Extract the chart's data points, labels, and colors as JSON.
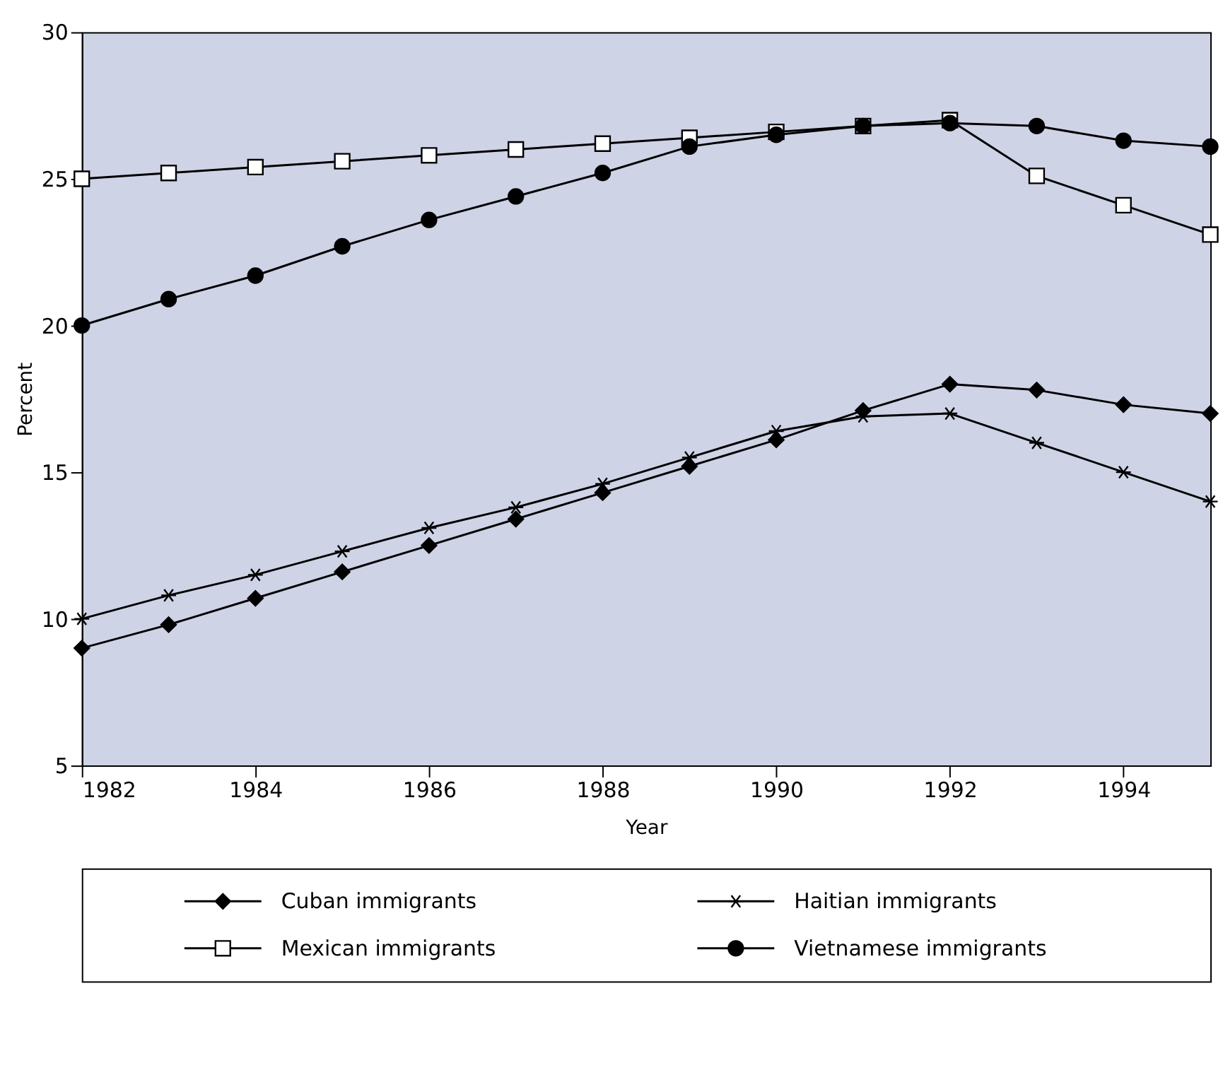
{
  "chart_data": {
    "type": "line",
    "xlabel": "Year",
    "ylabel": "Percent",
    "x": [
      1982,
      1983,
      1984,
      1985,
      1986,
      1987,
      1988,
      1989,
      1990,
      1991,
      1992,
      1993,
      1994,
      1995
    ],
    "xlim": [
      1982,
      1995
    ],
    "xticks": [
      1982,
      1984,
      1986,
      1988,
      1990,
      1992,
      1994
    ],
    "ylim": [
      5,
      30
    ],
    "yticks": [
      5,
      10,
      15,
      20,
      25,
      30
    ],
    "grid": false,
    "legend": "bottom",
    "series": [
      {
        "name": "Cuban immigrants",
        "color": "#000000",
        "marker": "diamond",
        "values": [
          9.0,
          9.8,
          10.7,
          11.6,
          12.5,
          13.4,
          14.3,
          15.2,
          16.1,
          17.1,
          18.0,
          17.8,
          17.3,
          17.0
        ]
      },
      {
        "name": "Haitian immigrants",
        "color": "#000000",
        "marker": "cross",
        "values": [
          10.0,
          10.8,
          11.5,
          12.3,
          13.1,
          13.8,
          14.6,
          15.5,
          16.4,
          16.9,
          17.0,
          16.0,
          15.0,
          14.0
        ]
      },
      {
        "name": "Mexican immigrants",
        "color": "#000000",
        "marker": "square",
        "values": [
          25.0,
          25.2,
          25.4,
          25.6,
          25.8,
          26.0,
          26.2,
          26.4,
          26.6,
          26.8,
          27.0,
          25.1,
          24.1,
          23.1
        ]
      },
      {
        "name": "Vietnamese immigrants",
        "color": "#000000",
        "marker": "circle",
        "values": [
          20.0,
          20.9,
          21.7,
          22.7,
          23.6,
          24.4,
          25.2,
          26.1,
          26.5,
          26.8,
          26.9,
          26.8,
          26.3,
          26.1
        ]
      }
    ]
  }
}
